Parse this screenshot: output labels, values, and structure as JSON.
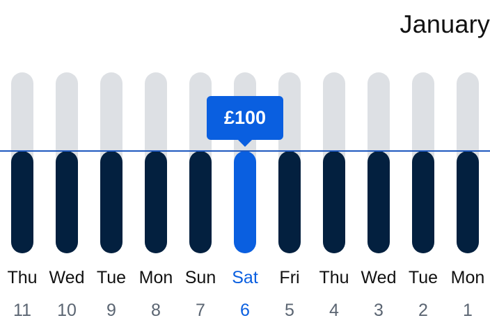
{
  "header": {
    "month": "January"
  },
  "tooltip": {
    "price": "£100"
  },
  "colors": {
    "track": "#dde0e4",
    "bar": "#03203f",
    "selected": "#0a5fe0",
    "avg_line": "#1d58bf",
    "label": "#111111",
    "number": "#5b6572"
  },
  "days": [
    {
      "name": "Thu",
      "num": "11",
      "selected": false
    },
    {
      "name": "Wed",
      "num": "10",
      "selected": false
    },
    {
      "name": "Tue",
      "num": "9",
      "selected": false
    },
    {
      "name": "Mon",
      "num": "8",
      "selected": false
    },
    {
      "name": "Sun",
      "num": "7",
      "selected": false
    },
    {
      "name": "Sat",
      "num": "6",
      "selected": true
    },
    {
      "name": "Fri",
      "num": "5",
      "selected": false
    },
    {
      "name": "Thu",
      "num": "4",
      "selected": false
    },
    {
      "name": "Wed",
      "num": "3",
      "selected": false
    },
    {
      "name": "Tue",
      "num": "2",
      "selected": false
    },
    {
      "name": "Mon",
      "num": "1",
      "selected": false
    }
  ]
}
